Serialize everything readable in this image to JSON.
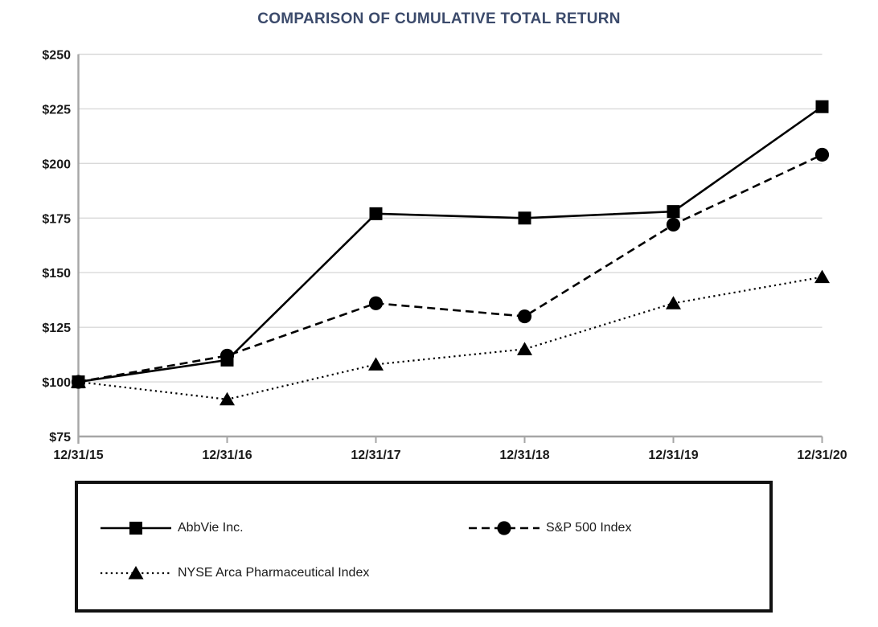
{
  "title": "COMPARISON OF CUMULATIVE TOTAL RETURN",
  "colors": {
    "title_text": "#3b4a6b",
    "series_line": "#000000",
    "gridline": "#d9d9d9",
    "axis_line": "#a6a6a6",
    "tick_label": "#1a1a1a",
    "legend_border": "#111111",
    "background": "#ffffff"
  },
  "chart_data": {
    "type": "line",
    "title": "COMPARISON OF CUMULATIVE TOTAL RETURN",
    "xlabel": "",
    "ylabel": "",
    "x": [
      "12/31/15",
      "12/31/16",
      "12/31/17",
      "12/31/18",
      "12/31/19",
      "12/31/20"
    ],
    "y_ticks": [
      75,
      100,
      125,
      150,
      175,
      200,
      225,
      250
    ],
    "y_tick_labels": [
      "$75",
      "$100",
      "$125",
      "$150",
      "$175",
      "$200",
      "$225",
      "$250"
    ],
    "ylim": [
      75,
      250
    ],
    "grid": true,
    "legend_position": "bottom-box",
    "series": [
      {
        "name": "AbbVie Inc.",
        "line_style": "solid",
        "marker": "square",
        "color": "#000000",
        "values": [
          100,
          110,
          177,
          175,
          178,
          226
        ]
      },
      {
        "name": "S&P 500 Index",
        "line_style": "dashed",
        "marker": "circle",
        "color": "#000000",
        "values": [
          100,
          112,
          136,
          130,
          172,
          204
        ]
      },
      {
        "name": "NYSE Arca Pharmaceutical Index",
        "line_style": "dotted",
        "marker": "triangle",
        "color": "#000000",
        "values": [
          100,
          92,
          108,
          115,
          136,
          148
        ]
      }
    ]
  }
}
